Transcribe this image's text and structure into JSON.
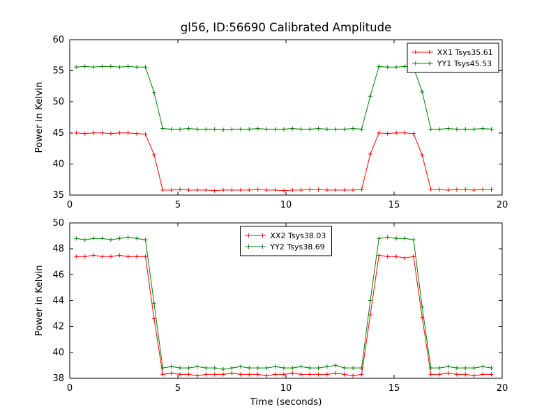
{
  "figure": {
    "background": "#ffffff",
    "frame_color": "#000000"
  },
  "chart_data": [
    {
      "type": "line",
      "title": "gl56, ID:56690 Calibrated Amplitude",
      "xlabel": "",
      "ylabel": "Power in Kelvin",
      "xlim": [
        0,
        20
      ],
      "ylim": [
        35,
        60
      ],
      "xticks": [
        0,
        5,
        10,
        15,
        20
      ],
      "yticks": [
        35,
        40,
        45,
        50,
        55,
        60
      ],
      "grid": false,
      "legend_position": "upper right",
      "marker": "plus",
      "x": [
        0.3,
        0.7,
        1.1,
        1.5,
        1.9,
        2.3,
        2.7,
        3.1,
        3.5,
        3.9,
        4.3,
        4.7,
        5.1,
        5.5,
        5.9,
        6.3,
        6.7,
        7.1,
        7.5,
        7.9,
        8.3,
        8.7,
        9.1,
        9.5,
        9.9,
        10.3,
        10.7,
        11.1,
        11.5,
        11.9,
        12.3,
        12.7,
        13.1,
        13.5,
        13.9,
        14.3,
        14.7,
        15.1,
        15.5,
        15.9,
        16.3,
        16.7,
        17.1,
        17.5,
        17.9,
        18.3,
        18.7,
        19.1,
        19.5
      ],
      "series": [
        {
          "name": "XX1 Tsys35.61",
          "color": "#ff0000",
          "values": [
            45.0,
            44.9,
            45.0,
            45.0,
            44.9,
            45.0,
            45.0,
            44.9,
            44.8,
            41.5,
            35.8,
            35.8,
            35.9,
            35.8,
            35.8,
            35.8,
            35.7,
            35.8,
            35.8,
            35.8,
            35.8,
            35.9,
            35.8,
            35.8,
            35.7,
            35.8,
            35.8,
            35.9,
            35.9,
            35.8,
            35.8,
            35.8,
            35.8,
            35.9,
            41.6,
            45.0,
            44.9,
            45.0,
            45.0,
            44.9,
            41.4,
            35.9,
            35.9,
            35.8,
            35.9,
            35.9,
            35.8,
            35.9,
            35.9
          ]
        },
        {
          "name": "YY1 Tsys45.53",
          "color": "#008000",
          "values": [
            55.6,
            55.7,
            55.6,
            55.7,
            55.7,
            55.6,
            55.7,
            55.6,
            55.6,
            51.5,
            45.7,
            45.6,
            45.6,
            45.7,
            45.6,
            45.6,
            45.6,
            45.5,
            45.6,
            45.6,
            45.6,
            45.7,
            45.6,
            45.6,
            45.6,
            45.7,
            45.6,
            45.6,
            45.7,
            45.6,
            45.6,
            45.6,
            45.7,
            45.6,
            50.9,
            55.7,
            55.6,
            55.6,
            55.7,
            55.5,
            51.6,
            45.6,
            45.6,
            45.7,
            45.6,
            45.6,
            45.6,
            45.7,
            45.6
          ]
        }
      ]
    },
    {
      "type": "line",
      "title": "",
      "xlabel": "Time (seconds)",
      "ylabel": "Power in Kelvin",
      "xlim": [
        0,
        20
      ],
      "ylim": [
        38,
        50
      ],
      "xticks": [
        0,
        5,
        10,
        15,
        20
      ],
      "yticks": [
        38,
        40,
        42,
        44,
        46,
        48,
        50
      ],
      "grid": false,
      "legend_position": "upper center",
      "marker": "plus",
      "x": [
        0.3,
        0.7,
        1.1,
        1.5,
        1.9,
        2.3,
        2.7,
        3.1,
        3.5,
        3.9,
        4.3,
        4.7,
        5.1,
        5.5,
        5.9,
        6.3,
        6.7,
        7.1,
        7.5,
        7.9,
        8.3,
        8.7,
        9.1,
        9.5,
        9.9,
        10.3,
        10.7,
        11.1,
        11.5,
        11.9,
        12.3,
        12.7,
        13.1,
        13.5,
        13.9,
        14.3,
        14.7,
        15.1,
        15.5,
        15.9,
        16.3,
        16.7,
        17.1,
        17.5,
        17.9,
        18.3,
        18.7,
        19.1,
        19.5
      ],
      "series": [
        {
          "name": "XX2 Tsys38.03",
          "color": "#ff0000",
          "values": [
            47.4,
            47.4,
            47.5,
            47.4,
            47.4,
            47.5,
            47.4,
            47.4,
            47.4,
            42.6,
            38.3,
            38.4,
            38.3,
            38.3,
            38.2,
            38.3,
            38.3,
            38.3,
            38.4,
            38.3,
            38.3,
            38.3,
            38.2,
            38.3,
            38.3,
            38.4,
            38.3,
            38.3,
            38.3,
            38.3,
            38.4,
            38.3,
            38.2,
            38.3,
            42.9,
            47.5,
            47.4,
            47.4,
            47.3,
            47.4,
            42.7,
            38.3,
            38.3,
            38.4,
            38.3,
            38.3,
            38.2,
            38.3,
            38.3
          ]
        },
        {
          "name": "YY2 Tsys38.69",
          "color": "#008000",
          "values": [
            48.8,
            48.7,
            48.8,
            48.8,
            48.7,
            48.8,
            48.9,
            48.8,
            48.7,
            43.8,
            38.8,
            38.9,
            38.8,
            38.8,
            38.9,
            38.8,
            38.8,
            38.7,
            38.8,
            38.9,
            38.8,
            38.8,
            38.8,
            38.9,
            38.8,
            38.8,
            38.9,
            38.8,
            38.8,
            38.9,
            39.0,
            38.8,
            38.8,
            38.8,
            44.0,
            48.8,
            48.9,
            48.8,
            48.8,
            48.7,
            43.5,
            38.8,
            38.8,
            38.9,
            38.8,
            38.8,
            38.8,
            38.9,
            38.8
          ]
        }
      ]
    }
  ]
}
